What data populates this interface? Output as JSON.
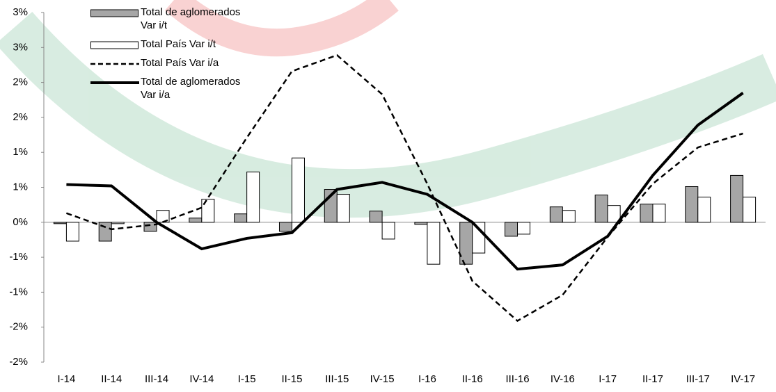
{
  "chart_data": {
    "type": "bar",
    "categories": [
      "I-14",
      "II-14",
      "III-14",
      "IV-14",
      "I-15",
      "II-15",
      "III-15",
      "IV-15",
      "I-16",
      "II-16",
      "III-16",
      "IV-16",
      "I-17",
      "II-17",
      "III-17",
      "IV-17"
    ],
    "series": [
      {
        "name": "Total de aglomerados Var i/t",
        "type": "bar",
        "color": "#a6a6a6",
        "values": [
          -0.02,
          -0.27,
          -0.13,
          0.06,
          0.12,
          -0.13,
          0.47,
          0.16,
          -0.03,
          -0.6,
          -0.2,
          0.22,
          0.39,
          0.26,
          0.51,
          0.67
        ]
      },
      {
        "name": "Total País Var i/t",
        "type": "bar",
        "color": "#ffffff",
        "values": [
          -0.27,
          -0.02,
          0.17,
          0.33,
          0.72,
          0.92,
          0.4,
          -0.24,
          -0.6,
          -0.44,
          -0.17,
          0.17,
          0.24,
          0.26,
          0.36,
          0.36
        ]
      },
      {
        "name": "Total País Var i/a",
        "type": "line",
        "style": "dashed",
        "color": "#000000",
        "values": [
          0.13,
          -0.1,
          -0.03,
          0.21,
          1.21,
          2.16,
          2.39,
          1.83,
          0.55,
          -0.84,
          -1.41,
          -1.04,
          -0.21,
          0.55,
          1.07,
          1.27
        ]
      },
      {
        "name": "Total de aglomerados Var i/a",
        "type": "line",
        "style": "solid",
        "color": "#000000",
        "values": [
          0.54,
          0.52,
          0,
          -0.38,
          -0.23,
          -0.15,
          0.47,
          0.57,
          0.4,
          0,
          -0.67,
          -0.61,
          -0.2,
          0.67,
          1.39,
          1.85
        ]
      }
    ],
    "ylim": [
      -2,
      3
    ],
    "yticks": [
      {
        "value": 3,
        "label": "3%"
      },
      {
        "value": 2.5,
        "label": "3%"
      },
      {
        "value": 2,
        "label": "2%"
      },
      {
        "value": 1.5,
        "label": "2%"
      },
      {
        "value": 1,
        "label": "1%"
      },
      {
        "value": 0.5,
        "label": "1%"
      },
      {
        "value": 0,
        "label": "0%"
      },
      {
        "value": -0.5,
        "label": "-1%"
      },
      {
        "value": -1,
        "label": "-1%"
      },
      {
        "value": -1.5,
        "label": "-2%"
      },
      {
        "value": -2,
        "label": "-2%"
      }
    ],
    "grid": false
  }
}
